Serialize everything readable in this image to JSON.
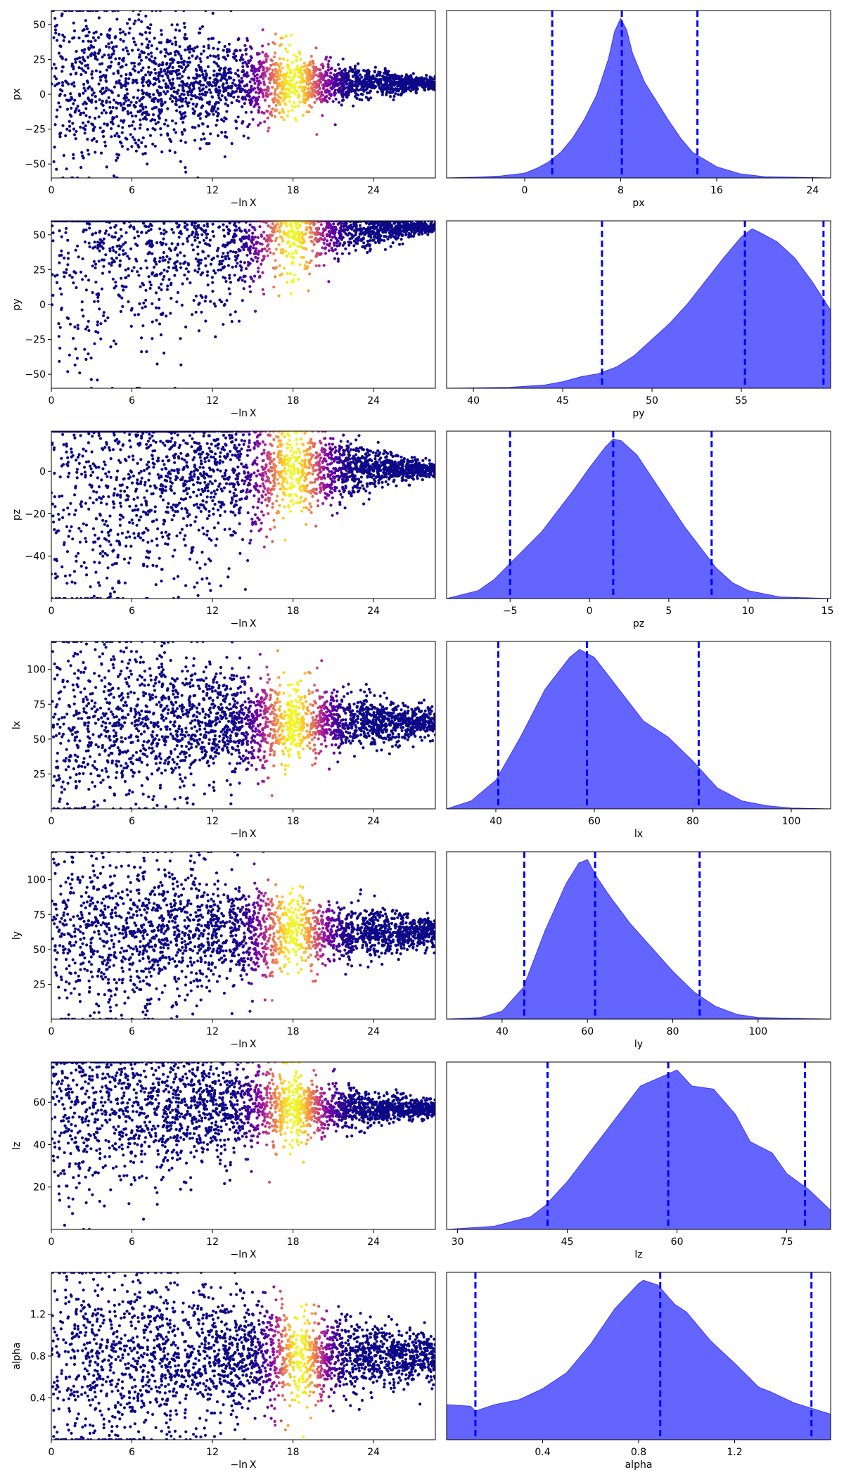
{
  "colors": {
    "kde_fill": "#6464ff",
    "kde_edge": "#3c3cf0",
    "quantile_line": "#0000ff",
    "cold": "#0d0887",
    "hot": "#f5f121"
  },
  "colormap": "plasma",
  "chart_data": [
    {
      "type": "scatter",
      "row": 0,
      "ylabel": "px",
      "xlabel": "−ln X",
      "xlim": [
        0,
        28.6
      ],
      "ylim": [
        -60,
        60
      ],
      "xticks": [
        0,
        6,
        12,
        18,
        24
      ],
      "yticks": [
        -50,
        -25,
        0,
        25,
        50
      ],
      "center": 8,
      "spread_start": 62,
      "spread_end": 4,
      "min_y": -60,
      "max_y": 60,
      "x_max": 28.6,
      "hot_center": 18,
      "hot_width": 2.2
    },
    {
      "type": "area",
      "row": 0,
      "xlabel": "px",
      "xlim": [
        -6.5,
        25.5
      ],
      "xticks": [
        0,
        8,
        16,
        24
      ],
      "x": [
        -6.5,
        -4,
        -2,
        0,
        1,
        2,
        3,
        4,
        5,
        6,
        7,
        7.5,
        8,
        8.5,
        9,
        10,
        11,
        12,
        13,
        14,
        16,
        18,
        20,
        25.5
      ],
      "density": [
        0.0,
        0.005,
        0.012,
        0.03,
        0.06,
        0.1,
        0.16,
        0.25,
        0.37,
        0.52,
        0.75,
        0.92,
        1.0,
        0.93,
        0.78,
        0.6,
        0.48,
        0.36,
        0.25,
        0.16,
        0.07,
        0.025,
        0.008,
        0.0
      ],
      "quantiles": [
        2.3,
        8.1,
        14.4
      ]
    },
    {
      "type": "scatter",
      "row": 1,
      "ylabel": "py",
      "xlabel": "−ln X",
      "xlim": [
        0,
        28.6
      ],
      "ylim": [
        -60,
        60
      ],
      "xticks": [
        0,
        6,
        12,
        18,
        24
      ],
      "yticks": [
        -50,
        -25,
        0,
        25,
        50
      ],
      "center": 55,
      "spread_start": 110,
      "spread_end": 3,
      "min_y": -60,
      "max_y": 60,
      "x_max": 28.6,
      "hot_center": 18,
      "hot_width": 2.2
    },
    {
      "type": "area",
      "row": 1,
      "xlabel": "py",
      "xlim": [
        38.5,
        60
      ],
      "xticks": [
        40,
        45,
        50,
        55
      ],
      "x": [
        38.5,
        42,
        44,
        45,
        46,
        47,
        48,
        49,
        50,
        51,
        52,
        53,
        54,
        55,
        55.6,
        56,
        57,
        58,
        59,
        60
      ],
      "density": [
        0.0,
        0.005,
        0.02,
        0.04,
        0.07,
        0.09,
        0.13,
        0.2,
        0.3,
        0.4,
        0.52,
        0.66,
        0.8,
        0.93,
        0.98,
        0.96,
        0.9,
        0.8,
        0.65,
        0.48
      ],
      "quantiles": [
        47.2,
        55.2,
        59.6
      ]
    },
    {
      "type": "scatter",
      "row": 2,
      "ylabel": "pz",
      "xlabel": "−ln X",
      "xlim": [
        0,
        28.6
      ],
      "ylim": [
        -60,
        19
      ],
      "xticks": [
        0,
        6,
        12,
        18,
        24
      ],
      "yticks": [
        -40,
        -20,
        0
      ],
      "center": 1,
      "spread_start": 70,
      "spread_end": 3,
      "min_y": -60,
      "max_y": 19,
      "x_max": 28.6,
      "hot_center": 18,
      "hot_width": 2.2
    },
    {
      "type": "area",
      "row": 2,
      "xlabel": "pz",
      "xlim": [
        -9,
        15.2
      ],
      "xticks": [
        -5,
        0,
        5,
        10,
        15
      ],
      "x": [
        -9,
        -7,
        -6,
        -5,
        -4,
        -3,
        -2,
        -1,
        0,
        1,
        1.5,
        2,
        3,
        4,
        5,
        6,
        7,
        8,
        9,
        10,
        12,
        15.2
      ],
      "density": [
        0.0,
        0.05,
        0.12,
        0.22,
        0.32,
        0.42,
        0.55,
        0.68,
        0.82,
        0.95,
        1.0,
        0.99,
        0.9,
        0.75,
        0.6,
        0.45,
        0.32,
        0.19,
        0.1,
        0.05,
        0.01,
        0.0
      ],
      "quantiles": [
        -5,
        1.5,
        7.7
      ]
    },
    {
      "type": "scatter",
      "row": 3,
      "ylabel": "lx",
      "xlabel": "−ln X",
      "xlim": [
        0,
        28.6
      ],
      "ylim": [
        0,
        120
      ],
      "xticks": [
        0,
        6,
        12,
        18,
        24
      ],
      "yticks": [
        25,
        50,
        75,
        100
      ],
      "center": 62,
      "spread_start": 62,
      "spread_end": 10,
      "min_y": 0,
      "max_y": 120,
      "x_max": 28.6,
      "hot_center": 18,
      "hot_width": 2.2
    },
    {
      "type": "area",
      "row": 3,
      "xlabel": "lx",
      "xlim": [
        30,
        108
      ],
      "xticks": [
        40,
        60,
        80,
        100
      ],
      "x": [
        30,
        35,
        40,
        45,
        50,
        55,
        57,
        60,
        65,
        70,
        75,
        80,
        85,
        90,
        95,
        100,
        108
      ],
      "density": [
        0.0,
        0.05,
        0.18,
        0.45,
        0.75,
        0.95,
        1.0,
        0.95,
        0.75,
        0.55,
        0.45,
        0.3,
        0.13,
        0.05,
        0.02,
        0.005,
        0.0
      ],
      "quantiles": [
        40.5,
        58.5,
        81.2
      ]
    },
    {
      "type": "scatter",
      "row": 4,
      "ylabel": "ly",
      "xlabel": "−ln X",
      "xlim": [
        0,
        28.6
      ],
      "ylim": [
        0,
        120
      ],
      "xticks": [
        0,
        6,
        12,
        18,
        24
      ],
      "yticks": [
        25,
        50,
        75,
        100
      ],
      "center": 62,
      "spread_start": 62,
      "spread_end": 10,
      "min_y": 0,
      "max_y": 120,
      "x_max": 28.6,
      "hot_center": 18,
      "hot_width": 2.2
    },
    {
      "type": "area",
      "row": 4,
      "xlabel": "ly",
      "xlim": [
        27,
        117
      ],
      "xticks": [
        40,
        60,
        80,
        100
      ],
      "x": [
        27,
        35,
        40,
        45,
        50,
        55,
        58,
        60,
        62,
        65,
        70,
        75,
        80,
        85,
        90,
        95,
        100,
        117
      ],
      "density": [
        0.0,
        0.01,
        0.05,
        0.2,
        0.55,
        0.85,
        0.98,
        1.0,
        0.9,
        0.78,
        0.6,
        0.45,
        0.3,
        0.17,
        0.08,
        0.03,
        0.01,
        0.0
      ],
      "quantiles": [
        45.2,
        61.8,
        86.3
      ]
    },
    {
      "type": "scatter",
      "row": 5,
      "ylabel": "lz",
      "xlabel": "−ln X",
      "xlim": [
        0,
        28.6
      ],
      "ylim": [
        0,
        79
      ],
      "xticks": [
        0,
        6,
        12,
        18,
        24
      ],
      "yticks": [
        20,
        40,
        60
      ],
      "center": 57,
      "spread_start": 42,
      "spread_end": 4,
      "min_y": 0,
      "max_y": 79,
      "x_max": 28.6,
      "hot_center": 18,
      "hot_width": 2.2
    },
    {
      "type": "area",
      "row": 5,
      "xlabel": "lz",
      "xlim": [
        28.5,
        81
      ],
      "xticks": [
        30,
        45,
        60,
        75
      ],
      "x": [
        28.5,
        35,
        40,
        42,
        45,
        48,
        50,
        53,
        55,
        58,
        60,
        62,
        65,
        68,
        70,
        73,
        75,
        78,
        81
      ],
      "density": [
        0.0,
        0.02,
        0.08,
        0.15,
        0.3,
        0.48,
        0.6,
        0.78,
        0.9,
        0.96,
        1.0,
        0.9,
        0.88,
        0.72,
        0.55,
        0.48,
        0.35,
        0.25,
        0.12
      ],
      "quantiles": [
        42.3,
        58.8,
        77.5
      ]
    },
    {
      "type": "scatter",
      "row": 6,
      "ylabel": "alpha",
      "xlabel": "−ln X",
      "xlim": [
        0,
        28.6
      ],
      "ylim": [
        0,
        1.6
      ],
      "xticks": [
        0,
        6,
        12,
        18,
        24
      ],
      "yticks": [
        0.4,
        0.8,
        1.2
      ],
      "center": 0.8,
      "spread_start": 0.85,
      "spread_end": 0.22,
      "min_y": 0,
      "max_y": 1.6,
      "x_max": 28.6,
      "hot_center": 18.5,
      "hot_width": 1.8
    },
    {
      "type": "area",
      "row": 6,
      "xlabel": "alpha",
      "xlim": [
        0,
        1.6
      ],
      "xticks": [
        0.4,
        0.8,
        1.2
      ],
      "x": [
        0,
        0.1,
        0.12,
        0.2,
        0.3,
        0.4,
        0.5,
        0.6,
        0.7,
        0.8,
        0.82,
        0.88,
        0.95,
        1.0,
        1.1,
        1.2,
        1.3,
        1.35,
        1.45,
        1.6
      ],
      "density": [
        0.22,
        0.21,
        0.18,
        0.22,
        0.25,
        0.32,
        0.42,
        0.6,
        0.82,
        0.98,
        1.0,
        0.97,
        0.85,
        0.8,
        0.62,
        0.48,
        0.33,
        0.3,
        0.23,
        0.16
      ],
      "quantiles": [
        0.12,
        0.89,
        1.52
      ]
    }
  ]
}
